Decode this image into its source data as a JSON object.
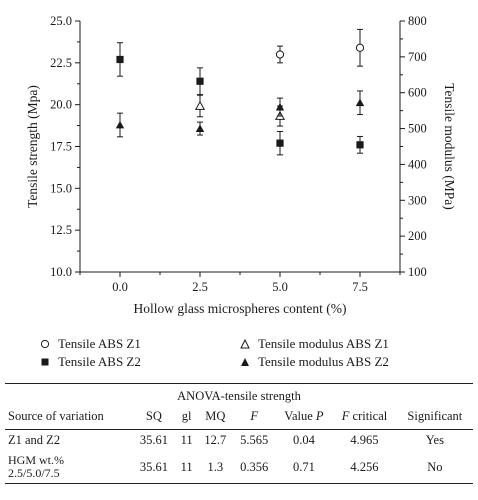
{
  "chart_data": {
    "type": "scatter",
    "xlabel": "Hollow glass microspheres content (%)",
    "ylabel_left": "Tensile strength (Mpa)",
    "ylabel_right": "Tensile modulus (MPa)",
    "x_ticks": [
      "0.0",
      "2.5",
      "5.0",
      "7.5"
    ],
    "y_left_ticks": [
      "10.0",
      "12.5",
      "15.0",
      "17.5",
      "20.0",
      "22.5",
      "25.0"
    ],
    "y_right_ticks": [
      "100",
      "200",
      "300",
      "400",
      "500",
      "600",
      "700",
      "800"
    ],
    "xlim": [
      -1.25,
      8.75
    ],
    "ylim_left": [
      10,
      25
    ],
    "ylim_right": [
      100,
      800
    ],
    "grid": false,
    "legend_position": "bottom",
    "series": [
      {
        "name": "Tensile ABS Z1",
        "axis": "left",
        "marker": "open-circle",
        "x": [
          5.0,
          7.5
        ],
        "y": [
          23.0,
          23.4
        ],
        "err": [
          0.5,
          1.1
        ]
      },
      {
        "name": "Tensile ABS Z2",
        "axis": "left",
        "marker": "filled-square",
        "x": [
          0.0,
          2.5,
          5.0,
          7.5
        ],
        "y": [
          22.7,
          21.4,
          17.7,
          17.6
        ],
        "err": [
          1.0,
          0.8,
          0.7,
          0.5
        ]
      },
      {
        "name": "Tensile modulus ABS Z1",
        "axis": "right",
        "marker": "open-triangle",
        "x": [
          2.5,
          5.0
        ],
        "y": [
          563,
          535
        ],
        "err": [
          30,
          28
        ]
      },
      {
        "name": "Tensile modulus ABS Z2",
        "axis": "right",
        "marker": "filled-triangle",
        "x": [
          0.0,
          2.5,
          5.0,
          7.5
        ],
        "y": [
          510,
          500,
          560,
          572
        ],
        "err": [
          33,
          18,
          25,
          33
        ]
      }
    ]
  },
  "legend": {
    "z1_strength": "Tensile ABS Z1",
    "z1_modulus": "Tensile modulus ABS Z1",
    "z2_strength": "Tensile ABS Z2",
    "z2_modulus": "Tensile modulus ABS Z2"
  },
  "anova": {
    "title": "ANOVA-tensile strength",
    "headers": {
      "source": "Source of variation",
      "sq": "SQ",
      "gl": "gl",
      "mq": "MQ",
      "f": "F",
      "p_prefix": "Value ",
      "p": "P",
      "fcrit_f": "F",
      "fcrit_rest": " critical",
      "significant": "Significant"
    },
    "rows": [
      {
        "source": "Z1 and Z2",
        "source2": "",
        "sq": "35.61",
        "gl": "11",
        "mq": "12.7",
        "f": "5.565",
        "p": "0.04",
        "fcrit": "4.965",
        "significant": "Yes"
      },
      {
        "source": "HGM wt.%",
        "source2": "2.5/5.0/7.5",
        "sq": "35.61",
        "gl": "11",
        "mq": "1.3",
        "f": "0.356",
        "p": "0.71",
        "fcrit": "4.256",
        "significant": "No"
      }
    ]
  }
}
